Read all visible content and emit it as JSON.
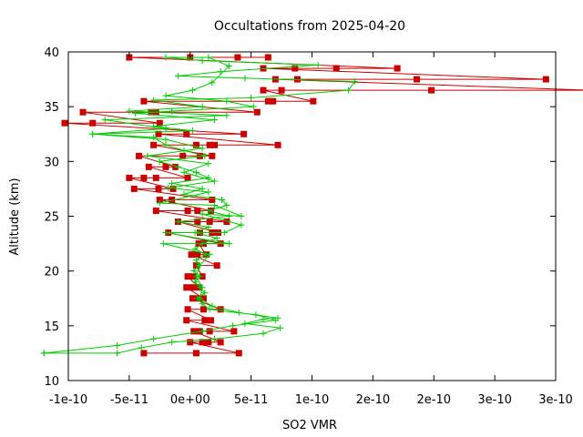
{
  "chart_data": {
    "type": "line",
    "title": "Occultations from 2025-04-20",
    "xlabel": "SO2 VMR",
    "ylabel": "Altitude (km)",
    "xlim": [
      -1e-10,
      3e-10
    ],
    "ylim": [
      10,
      40
    ],
    "xticks": [
      {
        "value": -1e-10,
        "label": "-1e-10"
      },
      {
        "value": -5e-11,
        "label": "-5e-11"
      },
      {
        "value": 0,
        "label": "0e+00"
      },
      {
        "value": 5e-11,
        "label": "5e-11"
      },
      {
        "value": 1e-10,
        "label": "1e-10"
      },
      {
        "value": 1.5e-10,
        "label": "2e-10"
      },
      {
        "value": 2e-10,
        "label": "2e-10"
      },
      {
        "value": 2.5e-10,
        "label": "3e-10"
      },
      {
        "value": 3e-10,
        "label": "3e-10"
      }
    ],
    "yticks": [
      10,
      15,
      20,
      25,
      30,
      35,
      40
    ],
    "grid": false,
    "legend": "none",
    "series": [
      {
        "color": "#cc0000",
        "marker": "square",
        "points": [
          [
            -3.8e-11,
            12.5
          ],
          [
            5e-12,
            12.5
          ],
          [
            4e-11,
            12.5
          ],
          [
            0,
            13.5
          ],
          [
            1e-11,
            13.5
          ],
          [
            1.5e-11,
            13.5
          ],
          [
            2.5e-11,
            13.5
          ],
          [
            3e-12,
            14.5
          ],
          [
            8e-12,
            14.5
          ],
          [
            1.6e-11,
            14.5
          ],
          [
            3.6e-11,
            14.5
          ],
          [
            -3e-12,
            15.5
          ],
          [
            1.2e-11,
            15.5
          ],
          [
            1.7e-11,
            15.5
          ],
          [
            -2e-12,
            16.5
          ],
          [
            1.1e-11,
            16.5
          ],
          [
            2.5e-11,
            16.5
          ],
          [
            2e-12,
            17.5
          ],
          [
            7e-12,
            17.5
          ],
          [
            1.1e-11,
            17.5
          ],
          [
            -3e-12,
            18.5
          ],
          [
            2e-12,
            18.5
          ],
          [
            7e-12,
            18.5
          ],
          [
            -2e-12,
            19.5
          ],
          [
            3e-12,
            19.5
          ],
          [
            1e-11,
            19.5
          ],
          [
            5e-12,
            20.5
          ],
          [
            2.2e-11,
            20.5
          ],
          [
            1e-12,
            21.5
          ],
          [
            6e-12,
            21.5
          ],
          [
            1.3e-11,
            21.5
          ],
          [
            7e-12,
            22.5
          ],
          [
            1.1e-11,
            22.5
          ],
          [
            2.5e-11,
            22.5
          ],
          [
            -1.8e-11,
            23.5
          ],
          [
            8e-12,
            23.5
          ],
          [
            1.8e-11,
            23.5
          ],
          [
            2.3e-11,
            23.5
          ],
          [
            -1e-11,
            24.5
          ],
          [
            6e-12,
            24.5
          ],
          [
            1.6e-11,
            24.5
          ],
          [
            3e-11,
            24.5
          ],
          [
            -2.8e-11,
            25.5
          ],
          [
            -2e-12,
            25.5
          ],
          [
            6e-12,
            25.5
          ],
          [
            1.7e-11,
            25.5
          ],
          [
            -2.5e-11,
            26.5
          ],
          [
            -1.5e-11,
            26.5
          ],
          [
            1.8e-11,
            26.5
          ],
          [
            -4.6e-11,
            27.5
          ],
          [
            -2.6e-11,
            27.5
          ],
          [
            -1.4e-11,
            27.5
          ],
          [
            -5e-11,
            28.5
          ],
          [
            -3.8e-11,
            28.5
          ],
          [
            -2.8e-11,
            28.5
          ],
          [
            -2e-12,
            28.5
          ],
          [
            -3.4e-11,
            29.5
          ],
          [
            -2e-11,
            29.5
          ],
          [
            -1.2e-11,
            29.5
          ],
          [
            -4.2e-11,
            30.5
          ],
          [
            -6e-12,
            30.5
          ],
          [
            8e-12,
            30.5
          ],
          [
            1.8e-11,
            30.5
          ],
          [
            -3e-11,
            31.5
          ],
          [
            5e-12,
            31.5
          ],
          [
            1.6e-11,
            31.5
          ],
          [
            2e-11,
            31.5
          ],
          [
            7.2e-11,
            31.5
          ],
          [
            -2.6e-11,
            32.5
          ],
          [
            -3e-12,
            32.5
          ],
          [
            4.4e-11,
            32.5
          ],
          [
            -1.03e-10,
            33.5
          ],
          [
            -8e-11,
            33.5
          ],
          [
            -2.5e-11,
            33.5
          ],
          [
            -8.8e-11,
            34.5
          ],
          [
            -3.2e-11,
            34.5
          ],
          [
            -2.8e-11,
            34.5
          ],
          [
            5.5e-11,
            34.5
          ],
          [
            -3.8e-11,
            35.5
          ],
          [
            6.4e-11,
            35.5
          ],
          [
            6.8e-11,
            35.5
          ],
          [
            1.01e-10,
            35.5
          ],
          [
            6e-11,
            36.5
          ],
          [
            7.5e-11,
            36.5
          ],
          [
            1.98e-10,
            36.5
          ],
          [
            3.28e-10,
            36.5
          ],
          [
            7e-11,
            37.5
          ],
          [
            8.8e-11,
            37.5
          ],
          [
            1.86e-10,
            37.5
          ],
          [
            2.92e-10,
            37.5
          ],
          [
            6e-11,
            38.5
          ],
          [
            8.6e-11,
            38.5
          ],
          [
            1.2e-10,
            38.5
          ],
          [
            1.7e-10,
            38.5
          ],
          [
            -5e-11,
            39.5
          ],
          [
            0,
            39.5
          ],
          [
            3.9e-11,
            39.5
          ],
          [
            6.4e-11,
            39.5
          ]
        ]
      },
      {
        "color": "#00cc00",
        "marker": "plus",
        "points": [
          [
            -1.2e-10,
            12.5
          ],
          [
            -6e-11,
            12.5
          ],
          [
            -4e-11,
            13
          ],
          [
            -1.5e-11,
            13.5
          ],
          [
            2e-11,
            13.8
          ],
          [
            6e-11,
            14.3
          ],
          [
            7.4e-11,
            14.8
          ],
          [
            4.5e-11,
            15.2
          ],
          [
            6e-11,
            15.6
          ],
          [
            7.2e-11,
            15.7
          ],
          [
            4e-11,
            16.2
          ],
          [
            1.8e-11,
            16.8
          ],
          [
            8e-12,
            17.5
          ],
          [
            1e-11,
            18.5
          ],
          [
            5e-12,
            19.5
          ],
          [
            8e-12,
            20.5
          ],
          [
            1.6e-11,
            21.5
          ],
          [
            -2.2e-11,
            22.5
          ],
          [
            3.2e-11,
            22.5
          ],
          [
            -2e-11,
            23.5
          ],
          [
            2.8e-11,
            23.5
          ],
          [
            4.2e-11,
            24.2
          ],
          [
            1e-11,
            25.2
          ],
          [
            4.2e-11,
            25
          ],
          [
            2e-11,
            26
          ],
          [
            -2.5e-11,
            26.2
          ],
          [
            1.5e-11,
            27.2
          ],
          [
            -1.8e-11,
            27.6
          ],
          [
            2e-11,
            28.2
          ],
          [
            -5e-12,
            29
          ],
          [
            1.5e-11,
            29.8
          ],
          [
            -3.5e-11,
            30.5
          ],
          [
            1e-11,
            31.2
          ],
          [
            -2e-11,
            32
          ],
          [
            -8e-11,
            32.5
          ],
          [
            -2e-11,
            33
          ],
          [
            -7e-11,
            33.8
          ],
          [
            3e-11,
            34.2
          ],
          [
            -5e-11,
            34.6
          ],
          [
            1e-11,
            35
          ],
          [
            -3e-11,
            35.6
          ],
          [
            5e-11,
            35.8
          ],
          [
            1.3e-10,
            36.5
          ],
          [
            1.35e-10,
            37.3
          ],
          [
            4.5e-11,
            37.6
          ],
          [
            -1e-11,
            37.8
          ],
          [
            2.5e-11,
            38.2
          ],
          [
            1.05e-10,
            38.8
          ],
          [
            1e-11,
            39.2
          ],
          [
            -2e-11,
            39.5
          ],
          [
            1.5e-11,
            39.5
          ],
          [
            3.2e-11,
            38.7
          ],
          [
            1.8e-11,
            37.2
          ],
          [
            2e-12,
            36.5
          ],
          [
            -2e-11,
            36
          ],
          [
            3e-11,
            35.5
          ],
          [
            5.2e-11,
            35
          ],
          [
            -1.5e-11,
            34.6
          ],
          [
            -4.5e-11,
            34.4
          ],
          [
            2e-11,
            33.8
          ],
          [
            -3e-11,
            33.2
          ],
          [
            2e-12,
            32.8
          ],
          [
            -8e-11,
            32.5
          ],
          [
            -3e-11,
            32.2
          ],
          [
            -2e-11,
            31.5
          ],
          [
            -5e-12,
            31
          ],
          [
            1.2e-11,
            30.5
          ],
          [
            -2.5e-11,
            30
          ],
          [
            -1e-11,
            29.5
          ],
          [
            5e-12,
            29
          ],
          [
            1.5e-11,
            28.5
          ],
          [
            -1.5e-11,
            28
          ],
          [
            1e-11,
            27.5
          ],
          [
            -5e-12,
            27
          ],
          [
            2.6e-11,
            26.5
          ],
          [
            3e-11,
            26
          ],
          [
            1.5e-11,
            25.5
          ],
          [
            3.2e-11,
            25
          ],
          [
            -1e-11,
            24.5
          ],
          [
            1.5e-11,
            24
          ],
          [
            4e-12,
            23.5
          ],
          [
            2.2e-11,
            23
          ],
          [
            1e-11,
            22.5
          ],
          [
            4e-12,
            22
          ],
          [
            1.3e-11,
            21.5
          ],
          [
            5e-12,
            21
          ],
          [
            7e-12,
            20.5
          ],
          [
            3e-12,
            20
          ],
          [
            8e-12,
            19.5
          ],
          [
            4e-12,
            19
          ],
          [
            8e-12,
            18.5
          ],
          [
            1.2e-11,
            18
          ],
          [
            6e-12,
            17.5
          ],
          [
            1e-11,
            17
          ],
          [
            1.6e-11,
            16.5
          ],
          [
            5.4e-11,
            16
          ],
          [
            7e-11,
            15.5
          ],
          [
            3.5e-11,
            15
          ],
          [
            1e-11,
            14.5
          ],
          [
            -3e-11,
            13.8
          ],
          [
            -6e-11,
            13.2
          ],
          [
            -1.2e-10,
            12.5
          ]
        ]
      }
    ]
  }
}
